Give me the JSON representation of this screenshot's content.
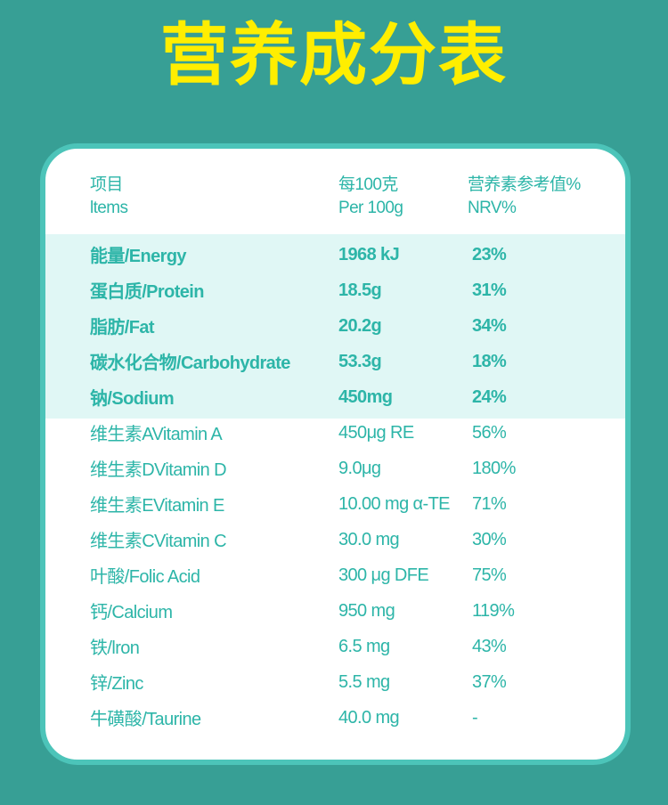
{
  "title": "营养成分表",
  "colors": {
    "background": "#379f95",
    "card_border": "#4cc4b9",
    "highlight": "#e0f7f5",
    "text": "#2db5a8",
    "title": "#ffee00"
  },
  "header": {
    "items_cn": "项目",
    "items_en": "ltems",
    "per_cn": "每100克",
    "per_en": "Per 100g",
    "nrv_cn": "营养素参考值%",
    "nrv_en": "NRV%"
  },
  "main_rows": [
    {
      "item": "能量/Energy",
      "amount": "1968 kJ",
      "nrv": "23%"
    },
    {
      "item": "蛋白质/Protein",
      "amount": "18.5g",
      "nrv": "31%"
    },
    {
      "item": "脂肪/Fat",
      "amount": "20.2g",
      "nrv": "34%"
    },
    {
      "item": "碳水化合物/Carbohydrate",
      "amount": "53.3g",
      "nrv": "18%"
    },
    {
      "item": "钠/Sodium",
      "amount": "450mg",
      "nrv": "24%"
    }
  ],
  "other_rows": [
    {
      "item": "维生素AVitamin A",
      "amount": "450μg RE",
      "nrv": "56%"
    },
    {
      "item": "维生素DVitamin D",
      "amount": "9.0μg",
      "nrv": "180%"
    },
    {
      "item": "维生素EVitamin E",
      "amount": "10.00 mg α-TE",
      "nrv": "71%"
    },
    {
      "item": "维生素CVitamin C",
      "amount": "30.0 mg",
      "nrv": "30%"
    },
    {
      "item": "叶酸/Folic Acid",
      "amount": "300 μg DFE",
      "nrv": "75%"
    },
    {
      "item": "钙/Calcium",
      "amount": "950 mg",
      "nrv": "119%"
    },
    {
      "item": "铁/lron",
      "amount": "6.5 mg",
      "nrv": "43%"
    },
    {
      "item": "锌/Zinc",
      "amount": "5.5 mg",
      "nrv": "37%"
    },
    {
      "item": "牛磺酸/Taurine",
      "amount": "40.0 mg",
      "nrv": "-"
    }
  ]
}
